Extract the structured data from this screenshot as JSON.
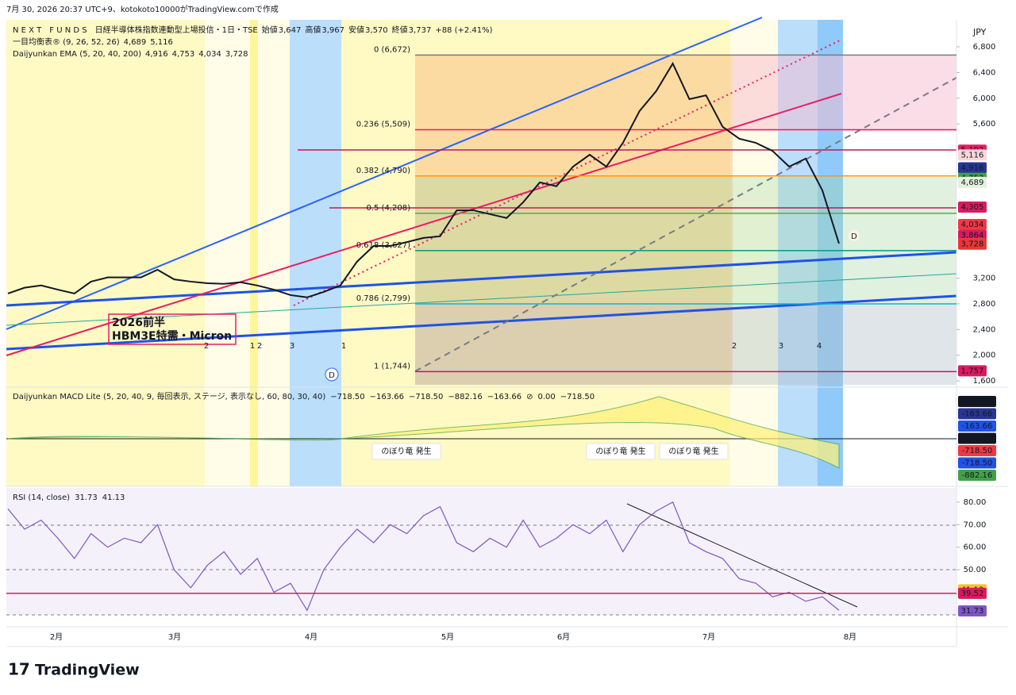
{
  "header": {
    "caption": "7月 30, 2026 20:37 UTC+9、kotokoto10000がTradingView.comで作成",
    "currency": "JPY",
    "logo": "TradingView"
  },
  "legend": {
    "symbol": "N E X T　F U N D S　日経半導体株指数連動型上場投信・1日・TSE",
    "ohlc": [
      {
        "label": "始値",
        "value": "3,647"
      },
      {
        "label": "高値",
        "value": "3,967"
      },
      {
        "label": "安値",
        "value": "3,570"
      },
      {
        "label": "終値",
        "value": "3,737"
      }
    ],
    "change": "+88 (+2.41%)",
    "ichimoku": {
      "name": "一目均衡表® (9, 26, 52, 26)",
      "values": [
        "4,689",
        "5,116"
      ]
    },
    "ema": {
      "name": "Daijyunkan EMA (5, 20, 40, 200)",
      "values": [
        "4,916",
        "4,753",
        "4,034",
        "3,728"
      ]
    }
  },
  "price_pane": {
    "ylim": [
      1514,
      7220
    ],
    "yticks": [
      {
        "value": 6800,
        "label": "6,800"
      },
      {
        "value": 6400,
        "label": "6,400"
      },
      {
        "value": 6000,
        "label": "6,000"
      },
      {
        "value": 5600,
        "label": "5,600"
      },
      {
        "value": 3200,
        "label": "3,200"
      },
      {
        "value": 2800,
        "label": "2,800"
      },
      {
        "value": 2400,
        "label": "2,400"
      },
      {
        "value": 2000,
        "label": "2,000"
      },
      {
        "value": 1600,
        "label": "1,600"
      }
    ],
    "close": [
      2960,
      3050,
      3085,
      3020,
      2960,
      3145,
      3210,
      3210,
      3210,
      3330,
      3180,
      3145,
      3120,
      3110,
      3135,
      3085,
      3020,
      2935,
      2900,
      2985,
      3085,
      3455,
      3700,
      3700,
      3760,
      3825,
      3850,
      4255,
      4255,
      4195,
      4135,
      4380,
      4690,
      4630,
      4935,
      5120,
      4935,
      5305,
      5800,
      6110,
      6540,
      5985,
      6045,
      5555,
      5370,
      5305,
      5180,
      4935,
      5060,
      4565,
      3737
    ],
    "color": "#131722",
    "fib": [
      {
        "value": 6672,
        "label": "0 (6,672)",
        "color": "#787b86"
      },
      {
        "value": 5509,
        "label": "0.236 (5,509)",
        "color": "#e91e63"
      },
      {
        "value": 4790,
        "label": "0.382 (4,790)",
        "color": "#ff9800"
      },
      {
        "value": 4208,
        "label": "0.5 (4,208)",
        "color": "#4caf50"
      },
      {
        "value": 3627,
        "label": "0.618 (3,627)",
        "color": "#089981"
      },
      {
        "value": 2799,
        "label": "0.786 (2,799)",
        "color": "#00bcd4"
      },
      {
        "value": 1744,
        "label": "1 (1,744)",
        "color": "#c2185b"
      }
    ],
    "badges": [
      {
        "value": 5192,
        "label": "5,192",
        "color": "#e91e63"
      },
      {
        "value": 5116,
        "label": "5,116",
        "color": "#f8d7da"
      },
      {
        "value": 4916,
        "label": "4,916",
        "color": "#283593"
      },
      {
        "value": 4753,
        "label": "4,753",
        "color": "#43a047"
      },
      {
        "value": 4689,
        "label": "4,689",
        "color": "#e3f0dc"
      },
      {
        "value": 4305,
        "label": "4,305",
        "color": "#d81b60"
      },
      {
        "value": 4034,
        "label": "4,034",
        "color": "#f23645"
      },
      {
        "value": 3864,
        "label": "3,864",
        "color": "#d81b60"
      },
      {
        "value": 3737,
        "label": "3,737",
        "color": "#f23645"
      },
      {
        "value": 3728,
        "label": "3,728",
        "color": "#e53935"
      },
      {
        "value": 1757,
        "label": "1,757",
        "color": "#d81b60"
      }
    ],
    "annotation": [
      "2026前半",
      "HBM3E特需・Micron"
    ],
    "waves": [
      "2",
      "1",
      "2",
      "3",
      "1",
      "2",
      "3",
      "4"
    ],
    "markers": [
      "D",
      "D"
    ]
  },
  "macd_pane": {
    "name": "Daijyunkan MACD Lite (5, 20, 40, 9, 毎回表示, ステージ, 表示なし, 60, 80, 30, 40)",
    "values": [
      "−718.50",
      "−163.66",
      "−718.50",
      "−882.16",
      "−163.66",
      "⊘",
      "0.00",
      "−718.50"
    ],
    "signals": [
      "のぼり竜 発生",
      "のぼり竜 発生",
      "のぼり竜 発生"
    ],
    "badges": [
      {
        "label": "0.00",
        "color": "#131722"
      },
      {
        "label": "-163.66",
        "color": "#283593"
      },
      {
        "label": "-163.66",
        "color": "#1e53e5"
      },
      {
        "label": "-718.50",
        "color": "#131722"
      },
      {
        "label": "-718.50",
        "color": "#f23645"
      },
      {
        "label": "-718.50",
        "color": "#1e53e5"
      },
      {
        "label": "-882.16",
        "color": "#43a047"
      }
    ]
  },
  "rsi_pane": {
    "name": "RSI (14, close)",
    "values": [
      "31.73",
      "41.13"
    ],
    "ylim": [
      24.7,
      86.3
    ],
    "yticks": [
      {
        "value": 80,
        "label": "80.00"
      },
      {
        "value": 70,
        "label": "70.00"
      },
      {
        "value": 60,
        "label": "60.00"
      },
      {
        "value": 50,
        "label": "50.00"
      }
    ],
    "rsi": [
      77,
      68,
      72,
      64,
      55,
      66,
      60,
      64,
      62,
      70,
      50,
      42,
      52,
      58,
      48,
      55,
      40,
      44,
      32,
      50,
      60,
      68,
      62,
      70,
      66,
      74,
      78,
      62,
      58,
      64,
      60,
      72,
      60,
      64,
      70,
      66,
      72,
      58,
      70,
      76,
      80,
      62,
      58,
      55,
      46,
      44,
      38,
      40,
      36,
      38,
      32
    ],
    "color": "#7e57c2",
    "badges": [
      {
        "value": 41.13,
        "label": "41.13",
        "color": "#fbc02d"
      },
      {
        "value": 39.52,
        "label": "39.52",
        "color": "#d81b60"
      },
      {
        "value": 31.73,
        "label": "31.73",
        "color": "#7e57c2"
      }
    ]
  },
  "x_axis": {
    "months": [
      "2月",
      "3月",
      "4月",
      "5月",
      "6月",
      "7月",
      "8月"
    ]
  }
}
